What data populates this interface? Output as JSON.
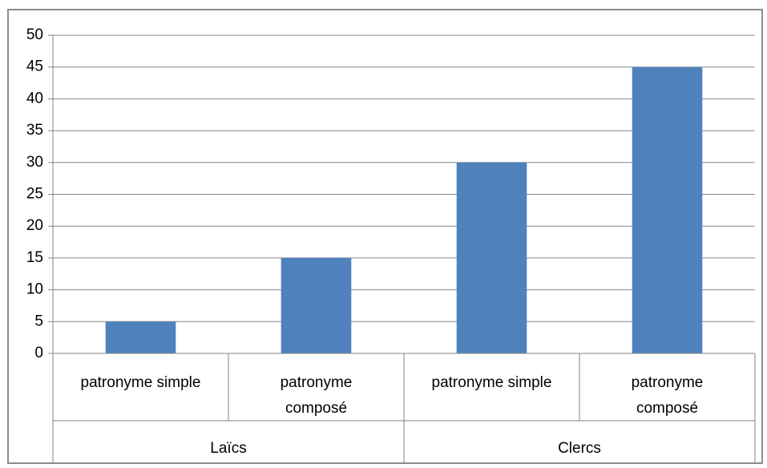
{
  "chart_data": {
    "type": "bar",
    "categories": [
      "patronyme simple",
      "patronyme composé",
      "patronyme simple",
      "patronyme composé"
    ],
    "category_groups": [
      "Laïcs",
      "Clercs"
    ],
    "values": [
      5,
      15,
      30,
      45
    ],
    "color": "#4f81bd",
    "ylim": [
      0,
      50
    ],
    "yticks": [
      0,
      5,
      10,
      15,
      20,
      25,
      30,
      35,
      40,
      45,
      50
    ],
    "grid": true
  }
}
